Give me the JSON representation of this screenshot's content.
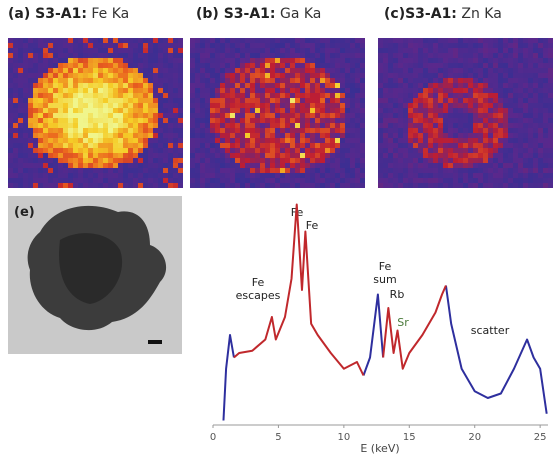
{
  "panels": [
    {
      "label": "(a) S3-A1:",
      "element": "Fe Ka"
    },
    {
      "label": "(b) S3-A1:",
      "element": "Ga Ka"
    },
    {
      "label": "(c)S3-A1:",
      "element": "Zn Ka"
    },
    {
      "label": "(e)"
    }
  ],
  "chart_data": {
    "type": "line",
    "xlabel": "E (keV)",
    "x": [
      0.8,
      1.0,
      1.3,
      1.6,
      2,
      3,
      4,
      4.5,
      4.8,
      5.5,
      6,
      6.4,
      6.8,
      7.06,
      7.5,
      8,
      9,
      10,
      11,
      11.5,
      12,
      12.6,
      13,
      13.4,
      13.8,
      14.1,
      14.5,
      15,
      16,
      17,
      17.5,
      17.8,
      18.2,
      19,
      20,
      21,
      22,
      23,
      24,
      24.5,
      25,
      25.5
    ],
    "series": [
      {
        "color": "#2e2f9e",
        "values": [
          2,
          25,
          40,
          30,
          null,
          null,
          null,
          null,
          null,
          null,
          null,
          null,
          null,
          null,
          null,
          null,
          null,
          null,
          null,
          22,
          30,
          58,
          30,
          null,
          null,
          null,
          null,
          null,
          null,
          null,
          null,
          62,
          45,
          25,
          15,
          12,
          14,
          25,
          38,
          30,
          25,
          5
        ]
      },
      {
        "color": "#c0282c",
        "values": [
          null,
          null,
          null,
          30,
          32,
          33,
          38,
          48,
          38,
          48,
          65,
          98,
          60,
          86,
          45,
          40,
          32,
          25,
          28,
          22,
          null,
          null,
          30,
          52,
          32,
          42,
          25,
          32,
          40,
          50,
          58,
          62,
          null,
          null,
          null,
          null,
          null,
          null,
          null,
          null,
          null,
          null
        ]
      }
    ],
    "xlim": [
      0,
      25.6
    ],
    "xticks": [
      0,
      5,
      10,
      15,
      20,
      25
    ],
    "ylim": [
      0,
      100
    ],
    "annotations": [
      "Fe",
      "Fe",
      "Fe\nescapes",
      "Fe\nsum",
      "Rb",
      "Sr",
      "scatter"
    ]
  }
}
